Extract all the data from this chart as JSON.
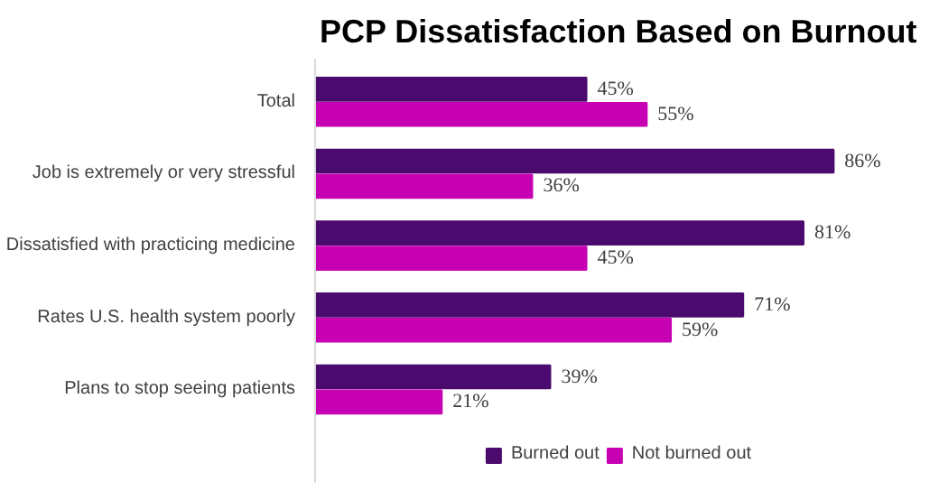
{
  "chart_data": {
    "type": "bar",
    "orientation": "horizontal",
    "title": "PCP Dissatisfaction Based on Burnout",
    "categories": [
      "Total",
      "Job is extremely or very stressful",
      "Dissatisfied with practicing medicine",
      "Rates U.S. health system poorly",
      "Plans to stop seeing patients"
    ],
    "series": [
      {
        "name": "Burned out",
        "color": "#4b0a6e",
        "values": [
          45,
          86,
          81,
          71,
          39
        ],
        "value_labels": [
          "45%",
          "86%",
          "81%",
          "71%",
          "39%"
        ]
      },
      {
        "name": "Not burned out",
        "color": "#c800b4",
        "values": [
          55,
          36,
          45,
          59,
          21
        ],
        "value_labels": [
          "55%",
          "36%",
          "45%",
          "59%",
          "21%"
        ]
      }
    ],
    "legend": "bottom",
    "grid": false
  }
}
